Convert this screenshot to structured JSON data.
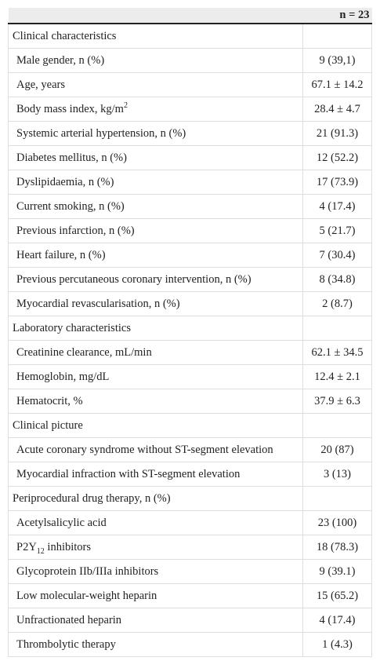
{
  "table": {
    "header": {
      "label": "",
      "value": "n = 23"
    },
    "rows": [
      {
        "type": "section",
        "label": "Clinical characteristics",
        "value": ""
      },
      {
        "type": "item",
        "label": "Male gender, n (%)",
        "value": "9 (39,1)"
      },
      {
        "type": "item",
        "label": "Age, years",
        "value": "67.1 ± 14.2"
      },
      {
        "type": "item",
        "label": "Body mass index, kg/m",
        "sup": "2",
        "value": "28.4 ± 4.7"
      },
      {
        "type": "item",
        "label": "Systemic arterial hypertension, n (%)",
        "value": "21 (91.3)"
      },
      {
        "type": "item",
        "label": "Diabetes mellitus, n (%)",
        "value": "12 (52.2)"
      },
      {
        "type": "item",
        "label": "Dyslipidaemia, n (%)",
        "value": "17 (73.9)"
      },
      {
        "type": "item",
        "label": "Current smoking, n (%)",
        "value": "4 (17.4)"
      },
      {
        "type": "item",
        "label": "Previous infarction, n (%)",
        "value": "5 (21.7)"
      },
      {
        "type": "item",
        "label": "Heart failure, n (%)",
        "value": "7 (30.4)"
      },
      {
        "type": "item",
        "label": "Previous percutaneous coronary intervention, n (%)",
        "value": "8 (34.8)"
      },
      {
        "type": "item",
        "label": "Myocardial revascularisation, n (%)",
        "value": "2 (8.7)"
      },
      {
        "type": "section",
        "label": "Laboratory characteristics",
        "value": ""
      },
      {
        "type": "item",
        "label": "Creatinine clearance, mL/min",
        "value": "62.1 ± 34.5"
      },
      {
        "type": "item",
        "label": "Hemoglobin, mg/dL",
        "value": "12.4 ± 2.1"
      },
      {
        "type": "item",
        "label": "Hematocrit, %",
        "value": "37.9 ± 6.3"
      },
      {
        "type": "section",
        "label": "Clinical picture",
        "value": ""
      },
      {
        "type": "item",
        "label": "Acute coronary syndrome without ST-segment elevation",
        "value": "20 (87)"
      },
      {
        "type": "item",
        "label": "Myocardial infraction with ST-segment elevation",
        "value": "3 (13)"
      },
      {
        "type": "section",
        "label": "Periprocedural drug therapy, n (%)",
        "value": ""
      },
      {
        "type": "item",
        "label": "Acetylsalicylic acid",
        "value": "23 (100)"
      },
      {
        "type": "item",
        "label": "P2Y",
        "sub": "12",
        "label_after": " inhibitors",
        "value": "18 (78.3)"
      },
      {
        "type": "item",
        "label": "Glycoprotein IIb/IIIa inhibitors",
        "value": "9 (39.1)"
      },
      {
        "type": "item",
        "label": "Low molecular-weight heparin",
        "value": "15 (65.2)"
      },
      {
        "type": "item",
        "label": "Unfractionated heparin",
        "value": "4 (17.4)"
      },
      {
        "type": "item",
        "label": "Thrombolytic therapy",
        "value": "1 (4.3)"
      }
    ]
  }
}
